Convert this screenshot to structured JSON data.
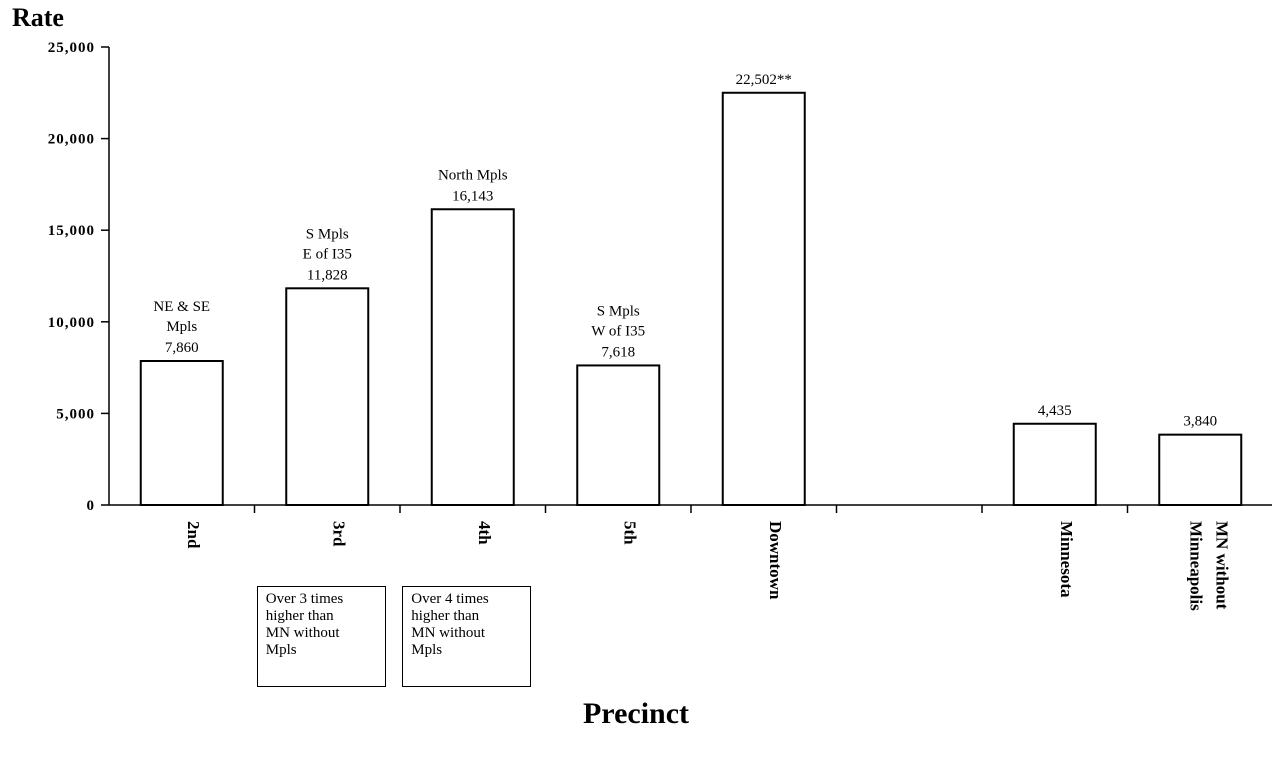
{
  "chart_data": {
    "type": "bar",
    "title": "",
    "xlabel": "Precinct",
    "ylabel": "Rate",
    "ylim": [
      0,
      25000
    ],
    "yticks": [
      0,
      5000,
      10000,
      15000,
      20000,
      25000
    ],
    "ytick_labels": [
      "0",
      "5,000",
      "10,000",
      "15,000",
      "20,000",
      "25,000"
    ],
    "categories": [
      "2nd",
      "3rd",
      "4th",
      "5th",
      "Downtown",
      "",
      "Minnesota",
      "MN without Minneapolis"
    ],
    "values": [
      7860,
      11828,
      16143,
      7618,
      22502,
      null,
      4435,
      3840
    ],
    "value_labels": [
      "7,860",
      "11,828",
      "16,143",
      "7,618",
      "22,502**",
      "",
      "4,435",
      "3,840"
    ],
    "bar_annotations": [
      "NE & SE\nMpls",
      "S Mpls\nE of I35",
      "North Mpls",
      "S Mpls\nW of I35",
      "",
      "",
      "",
      ""
    ],
    "notes": [
      {
        "category": "3rd",
        "text": "Over 3 times\nhigher than\nMN without\nMpls"
      },
      {
        "category": "4th",
        "text": "Over 4 times\nhigher than\nMN without\nMpls"
      }
    ],
    "grid": false,
    "legend": "none"
  }
}
